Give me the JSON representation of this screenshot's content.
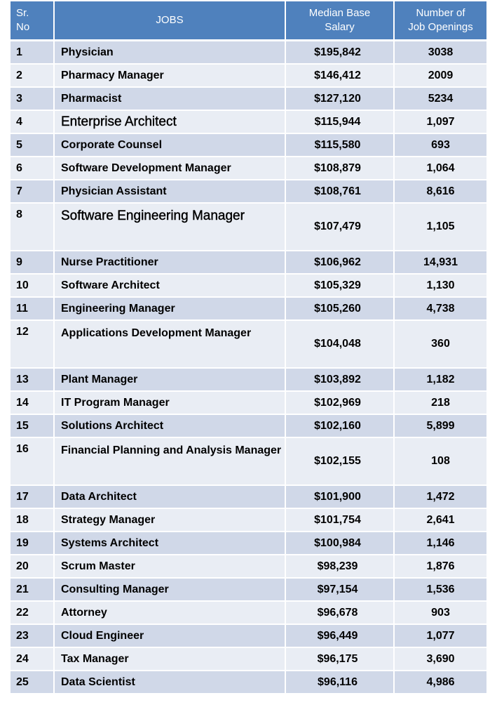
{
  "headers": {
    "sr_no": [
      "Sr.",
      "No"
    ],
    "jobs": "JOBS",
    "salary": [
      "Median Base",
      "Salary"
    ],
    "openings": [
      "Number of",
      "Job Openings"
    ]
  },
  "rows": [
    {
      "no": "1",
      "job": "Physician",
      "salary": "$195,842",
      "openings": "3038"
    },
    {
      "no": "2",
      "job": "Pharmacy Manager",
      "salary": "$146,412",
      "openings": "2009"
    },
    {
      "no": "3",
      "job": "Pharmacist",
      "salary": "$127,120",
      "openings": "5234"
    },
    {
      "no": "4",
      "job": "Enterprise Architect",
      "salary": "$115,944",
      "openings": "1,097"
    },
    {
      "no": "5",
      "job": "Corporate Counsel",
      "salary": "$115,580",
      "openings": "693"
    },
    {
      "no": "6",
      "job": "Software Development Manager",
      "salary": "$108,879",
      "openings": "1,064"
    },
    {
      "no": "7",
      "job": "Physician Assistant",
      "salary": "$108,761",
      "openings": "8,616"
    },
    {
      "no": "8",
      "job": "Software Engineering Manager",
      "salary": "$107,479",
      "openings": "1,105"
    },
    {
      "no": "9",
      "job": "Nurse Practitioner",
      "salary": "$106,962",
      "openings": "14,931"
    },
    {
      "no": "10",
      "job": "Software Architect",
      "salary": "$105,329",
      "openings": "1,130"
    },
    {
      "no": "11",
      "job": "Engineering Manager",
      "salary": "$105,260",
      "openings": "4,738"
    },
    {
      "no": "12",
      "job": "Applications Development Manager",
      "salary": "$104,048",
      "openings": "360"
    },
    {
      "no": "13",
      "job": "Plant Manager",
      "salary": "$103,892",
      "openings": "1,182"
    },
    {
      "no": "14",
      "job": "IT Program Manager",
      "salary": "$102,969",
      "openings": "218"
    },
    {
      "no": "15",
      "job": "Solutions Architect",
      "salary": "$102,160",
      "openings": "5,899"
    },
    {
      "no": "16",
      "job": "Financial Planning and Analysis Manager",
      "salary": "$102,155",
      "openings": "108"
    },
    {
      "no": "17",
      "job": "Data Architect",
      "salary": "$101,900",
      "openings": "1,472"
    },
    {
      "no": "18",
      "job": "Strategy Manager",
      "salary": "$101,754",
      "openings": "2,641"
    },
    {
      "no": "19",
      "job": "Systems Architect",
      "salary": "$100,984",
      "openings": "1,146"
    },
    {
      "no": "20",
      "job": "Scrum Master",
      "salary": "$98,239",
      "openings": "1,876"
    },
    {
      "no": "21",
      "job": "Consulting Manager",
      "salary": "$97,154",
      "openings": "1,536"
    },
    {
      "no": "22",
      "job": "Attorney",
      "salary": "$96,678",
      "openings": "903"
    },
    {
      "no": "23",
      "job": "Cloud Engineer",
      "salary": "$96,449",
      "openings": "1,077"
    },
    {
      "no": "24",
      "job": "Tax Manager",
      "salary": "$96,175",
      "openings": "3,690"
    },
    {
      "no": "25",
      "job": "Data Scientist",
      "salary": "$96,116",
      "openings": "4,986"
    }
  ],
  "colors": {
    "header_bg": "#4f81bd",
    "row_odd_bg": "#d0d8e8",
    "row_even_bg": "#e9edf4"
  }
}
